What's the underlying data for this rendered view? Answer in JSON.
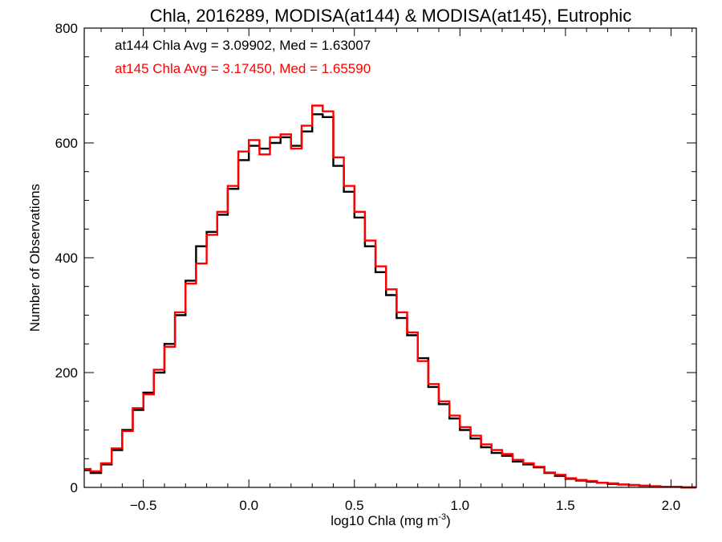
{
  "chart_data": {
    "type": "line",
    "title": "Chla, 2016289, MODISA(at144) & MODISA(at145), Eutrophic",
    "xlabel": "log10 Chla (mg m",
    "xlabel_sup": "-3",
    "xlabel_end": ")",
    "ylabel": "Number of Observations",
    "xlim": [
      -0.78,
      2.12
    ],
    "ylim": [
      0,
      800
    ],
    "x_ticks": [
      -0.5,
      0.0,
      0.5,
      1.0,
      1.5,
      2.0
    ],
    "x_tick_labels": [
      "−0.5",
      "0.0",
      "0.5",
      "1.0",
      "1.5",
      "2.0"
    ],
    "y_ticks": [
      0,
      200,
      400,
      600,
      800
    ],
    "y_tick_labels": [
      "0",
      "200",
      "400",
      "600",
      "800"
    ],
    "grid": false,
    "step": "histogram",
    "annotations": [
      {
        "text": "at144 Chla Avg = 3.09902, Med = 1.63007",
        "color": "#000000"
      },
      {
        "text": "at145 Chla Avg = 3.17450, Med = 1.65590",
        "color": "#ff0000"
      }
    ],
    "series": [
      {
        "color": "#000000",
        "x": [
          -0.78,
          -0.75,
          -0.7,
          -0.65,
          -0.6,
          -0.55,
          -0.5,
          -0.45,
          -0.4,
          -0.35,
          -0.3,
          -0.25,
          -0.2,
          -0.15,
          -0.1,
          -0.05,
          0.0,
          0.05,
          0.1,
          0.15,
          0.2,
          0.25,
          0.3,
          0.35,
          0.4,
          0.45,
          0.5,
          0.55,
          0.6,
          0.65,
          0.7,
          0.75,
          0.8,
          0.85,
          0.9,
          0.95,
          1.0,
          1.05,
          1.1,
          1.15,
          1.2,
          1.25,
          1.3,
          1.35,
          1.4,
          1.45,
          1.5,
          1.55,
          1.6,
          1.65,
          1.7,
          1.75,
          1.8,
          1.85,
          1.9,
          1.95,
          2.0,
          2.05,
          2.12
        ],
        "values": [
          30,
          25,
          40,
          65,
          100,
          135,
          165,
          200,
          250,
          300,
          360,
          420,
          445,
          475,
          520,
          570,
          595,
          590,
          600,
          610,
          595,
          620,
          650,
          645,
          560,
          515,
          470,
          420,
          375,
          335,
          295,
          265,
          225,
          175,
          145,
          120,
          100,
          85,
          70,
          60,
          55,
          45,
          40,
          35,
          25,
          20,
          15,
          12,
          10,
          8,
          6,
          5,
          4,
          3,
          2,
          1,
          1,
          0,
          0
        ]
      },
      {
        "color": "#ff0000",
        "x": [
          -0.78,
          -0.75,
          -0.7,
          -0.65,
          -0.6,
          -0.55,
          -0.5,
          -0.45,
          -0.4,
          -0.35,
          -0.3,
          -0.25,
          -0.2,
          -0.15,
          -0.1,
          -0.05,
          0.0,
          0.05,
          0.1,
          0.15,
          0.2,
          0.25,
          0.3,
          0.35,
          0.4,
          0.45,
          0.5,
          0.55,
          0.6,
          0.65,
          0.7,
          0.75,
          0.8,
          0.85,
          0.9,
          0.95,
          1.0,
          1.05,
          1.1,
          1.15,
          1.2,
          1.25,
          1.3,
          1.35,
          1.4,
          1.45,
          1.5,
          1.55,
          1.6,
          1.65,
          1.7,
          1.75,
          1.8,
          1.85,
          1.9,
          1.95,
          2.0,
          2.05,
          2.12
        ],
        "values": [
          32,
          28,
          42,
          68,
          98,
          138,
          162,
          205,
          245,
          305,
          355,
          390,
          440,
          480,
          525,
          585,
          605,
          580,
          610,
          615,
          590,
          630,
          665,
          655,
          575,
          525,
          480,
          430,
          385,
          345,
          305,
          270,
          220,
          180,
          150,
          125,
          105,
          90,
          75,
          65,
          58,
          48,
          42,
          36,
          26,
          22,
          16,
          13,
          11,
          8,
          7,
          5,
          4,
          3,
          2,
          1,
          1,
          0,
          0
        ]
      }
    ]
  }
}
